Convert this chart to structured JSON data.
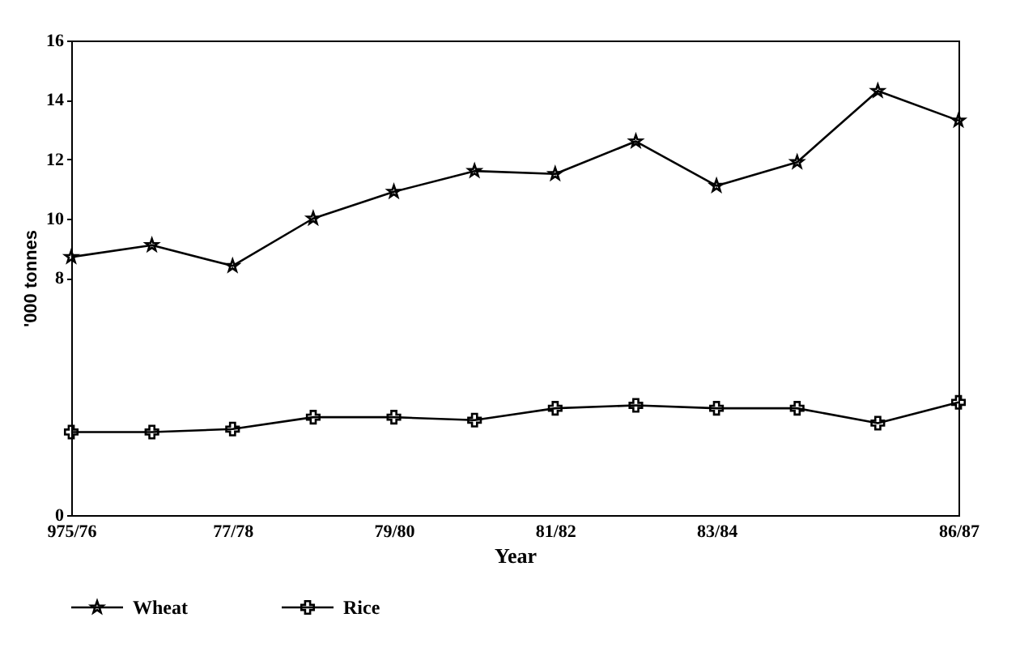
{
  "chart_data": {
    "type": "line",
    "xlabel": "Year",
    "ylabel": "'000 tonnes",
    "categories": [
      "975/76",
      null,
      "77/78",
      null,
      "79/80",
      null,
      "81/82",
      null,
      "83/84",
      null,
      null,
      "86/87"
    ],
    "series": [
      {
        "name": "Wheat",
        "color": "#000000",
        "marker": "star",
        "values": [
          8.7,
          9.1,
          8.4,
          10.0,
          10.9,
          11.6,
          11.5,
          12.6,
          11.1,
          11.9,
          14.3,
          13.3
        ]
      },
      {
        "name": "Rice",
        "color": "#000000",
        "marker": "cross",
        "values": [
          2.8,
          2.8,
          2.9,
          3.3,
          3.3,
          3.2,
          3.6,
          3.7,
          3.6,
          3.6,
          3.1,
          3.8
        ]
      }
    ],
    "ylim": [
      0,
      16
    ],
    "yticks": [
      0,
      8,
      10,
      12,
      14,
      16
    ],
    "grid": false,
    "legend": "bottom",
    "line_style": "solid"
  }
}
